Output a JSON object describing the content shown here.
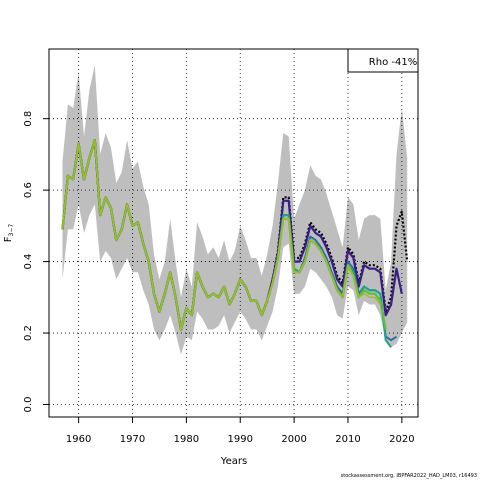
{
  "chart_data": {
    "type": "line",
    "xlabel": "Years",
    "ylabel_main": "F",
    "ylabel_sub": "3−7",
    "xlim": [
      1954.5,
      2023
    ],
    "ylim": [
      -0.035,
      0.995
    ],
    "x_ticks": [
      1960,
      1970,
      1980,
      1990,
      2000,
      2010,
      2020
    ],
    "y_ticks": [
      0.0,
      0.2,
      0.4,
      0.6,
      0.8
    ],
    "y_tick_labels": [
      "0.0",
      "0.2",
      "0.4",
      "0.6",
      "0.8"
    ],
    "grid": true,
    "legend_text": "Rho -41%",
    "legend_position": "top-right",
    "band": {
      "color": "#bebebe",
      "x": [
        1957,
        1958,
        1959,
        1960,
        1961,
        1962,
        1963,
        1964,
        1965,
        1966,
        1967,
        1968,
        1969,
        1970,
        1971,
        1972,
        1973,
        1974,
        1975,
        1976,
        1977,
        1978,
        1979,
        1980,
        1981,
        1982,
        1983,
        1984,
        1985,
        1986,
        1987,
        1988,
        1989,
        1990,
        1991,
        1992,
        1993,
        1994,
        1995,
        1996,
        1997,
        1998,
        1999,
        2000,
        2001,
        2002,
        2003,
        2004,
        2005,
        2006,
        2007,
        2008,
        2009,
        2010,
        2011,
        2012,
        2013,
        2014,
        2015,
        2016,
        2017,
        2018,
        2019,
        2020,
        2021
      ],
      "upper": [
        0.68,
        0.84,
        0.83,
        0.93,
        0.75,
        0.88,
        0.95,
        0.7,
        0.76,
        0.72,
        0.62,
        0.65,
        0.74,
        0.66,
        0.68,
        0.61,
        0.56,
        0.42,
        0.35,
        0.4,
        0.52,
        0.4,
        0.3,
        0.38,
        0.33,
        0.51,
        0.47,
        0.42,
        0.44,
        0.41,
        0.46,
        0.4,
        0.43,
        0.5,
        0.46,
        0.41,
        0.41,
        0.36,
        0.42,
        0.5,
        0.62,
        0.76,
        0.75,
        0.52,
        0.56,
        0.6,
        0.67,
        0.64,
        0.63,
        0.59,
        0.54,
        0.49,
        0.44,
        0.58,
        0.56,
        0.46,
        0.52,
        0.53,
        0.53,
        0.52,
        0.32,
        0.4,
        0.7,
        0.83,
        0.69
      ],
      "lower": [
        0.35,
        0.49,
        0.49,
        0.56,
        0.48,
        0.53,
        0.56,
        0.4,
        0.43,
        0.41,
        0.35,
        0.38,
        0.41,
        0.37,
        0.37,
        0.32,
        0.28,
        0.21,
        0.18,
        0.21,
        0.25,
        0.2,
        0.14,
        0.19,
        0.18,
        0.26,
        0.24,
        0.21,
        0.21,
        0.22,
        0.25,
        0.2,
        0.23,
        0.26,
        0.24,
        0.21,
        0.21,
        0.18,
        0.22,
        0.26,
        0.33,
        0.44,
        0.45,
        0.31,
        0.31,
        0.33,
        0.38,
        0.37,
        0.35,
        0.33,
        0.3,
        0.25,
        0.24,
        0.33,
        0.32,
        0.25,
        0.29,
        0.28,
        0.28,
        0.25,
        0.18,
        0.16,
        0.17,
        0.2,
        0.23
      ]
    },
    "series": [
      {
        "role": "full",
        "color": "#000000",
        "dashed": true,
        "width": 2.2,
        "x": [
          1957,
          1958,
          1959,
          1960,
          1961,
          1962,
          1963,
          1964,
          1965,
          1966,
          1967,
          1968,
          1969,
          1970,
          1971,
          1972,
          1973,
          1974,
          1975,
          1976,
          1977,
          1978,
          1979,
          1980,
          1981,
          1982,
          1983,
          1984,
          1985,
          1986,
          1987,
          1988,
          1989,
          1990,
          1991,
          1992,
          1993,
          1994,
          1995,
          1996,
          1997,
          1998,
          1999,
          2000,
          2001,
          2002,
          2003,
          2004,
          2005,
          2006,
          2007,
          2008,
          2009,
          2010,
          2011,
          2012,
          2013,
          2014,
          2015,
          2016,
          2017,
          2018,
          2019,
          2020,
          2021
        ],
        "y": [
          0.49,
          0.64,
          0.63,
          0.73,
          0.63,
          0.69,
          0.74,
          0.53,
          0.58,
          0.55,
          0.46,
          0.49,
          0.56,
          0.5,
          0.51,
          0.45,
          0.4,
          0.31,
          0.26,
          0.31,
          0.37,
          0.3,
          0.21,
          0.27,
          0.25,
          0.37,
          0.33,
          0.3,
          0.31,
          0.3,
          0.33,
          0.28,
          0.31,
          0.35,
          0.33,
          0.29,
          0.29,
          0.25,
          0.29,
          0.35,
          0.43,
          0.58,
          0.58,
          0.41,
          0.41,
          0.45,
          0.51,
          0.49,
          0.48,
          0.45,
          0.41,
          0.36,
          0.34,
          0.44,
          0.42,
          0.34,
          0.4,
          0.39,
          0.39,
          0.38,
          0.26,
          0.3,
          0.5,
          0.54,
          0.4
        ]
      },
      {
        "role": "peel",
        "color": "#3a1d86",
        "dashed": false,
        "width": 2.2,
        "x": [
          1957,
          1958,
          1959,
          1960,
          1961,
          1962,
          1963,
          1964,
          1965,
          1966,
          1967,
          1968,
          1969,
          1970,
          1971,
          1972,
          1973,
          1974,
          1975,
          1976,
          1977,
          1978,
          1979,
          1980,
          1981,
          1982,
          1983,
          1984,
          1985,
          1986,
          1987,
          1988,
          1989,
          1990,
          1991,
          1992,
          1993,
          1994,
          1995,
          1996,
          1997,
          1998,
          1999,
          2000,
          2001,
          2002,
          2003,
          2004,
          2005,
          2006,
          2007,
          2008,
          2009,
          2010,
          2011,
          2012,
          2013,
          2014,
          2015,
          2016,
          2017,
          2018,
          2019,
          2020
        ],
        "y": [
          0.49,
          0.64,
          0.63,
          0.73,
          0.63,
          0.69,
          0.74,
          0.53,
          0.58,
          0.55,
          0.46,
          0.49,
          0.56,
          0.5,
          0.51,
          0.45,
          0.4,
          0.31,
          0.26,
          0.31,
          0.37,
          0.3,
          0.21,
          0.27,
          0.25,
          0.37,
          0.33,
          0.3,
          0.31,
          0.3,
          0.33,
          0.28,
          0.31,
          0.35,
          0.33,
          0.29,
          0.29,
          0.25,
          0.29,
          0.35,
          0.42,
          0.57,
          0.57,
          0.4,
          0.4,
          0.44,
          0.5,
          0.48,
          0.47,
          0.44,
          0.4,
          0.35,
          0.33,
          0.43,
          0.41,
          0.33,
          0.39,
          0.38,
          0.38,
          0.37,
          0.25,
          0.28,
          0.38,
          0.31
        ]
      },
      {
        "role": "peel",
        "color": "#2c6ea6",
        "dashed": false,
        "width": 2,
        "x": [
          1996,
          1997,
          1998,
          1999,
          2000,
          2001,
          2002,
          2003,
          2004,
          2005,
          2006,
          2007,
          2008,
          2009,
          2010,
          2011,
          2012,
          2013,
          2014,
          2015,
          2016,
          2017,
          2018,
          2019
        ],
        "y": [
          0.34,
          0.41,
          0.53,
          0.53,
          0.38,
          0.37,
          0.41,
          0.47,
          0.46,
          0.44,
          0.41,
          0.37,
          0.33,
          0.31,
          0.4,
          0.38,
          0.31,
          0.33,
          0.32,
          0.32,
          0.31,
          0.19,
          0.18,
          0.19
        ]
      },
      {
        "role": "peel",
        "color": "#20a386",
        "dashed": false,
        "width": 2,
        "x": [
          1996,
          1997,
          1998,
          1999,
          2000,
          2001,
          2002,
          2003,
          2004,
          2005,
          2006,
          2007,
          2008,
          2009,
          2010,
          2011,
          2012,
          2013,
          2014,
          2015,
          2016,
          2017,
          2018
        ],
        "y": [
          0.34,
          0.41,
          0.53,
          0.53,
          0.38,
          0.37,
          0.4,
          0.46,
          0.45,
          0.43,
          0.4,
          0.36,
          0.32,
          0.3,
          0.39,
          0.37,
          0.3,
          0.33,
          0.32,
          0.32,
          0.31,
          0.18,
          0.16
        ]
      },
      {
        "role": "peel",
        "color": "#5bbf3e",
        "dashed": false,
        "width": 2.2,
        "x": [
          1957,
          1958,
          1959,
          1960,
          1961,
          1962,
          1963,
          1964,
          1965,
          1966,
          1967,
          1968,
          1969,
          1970,
          1971,
          1972,
          1973,
          1974,
          1975,
          1976,
          1977,
          1978,
          1979,
          1980,
          1981,
          1982,
          1983,
          1984,
          1985,
          1986,
          1987,
          1988,
          1989,
          1990,
          1991,
          1992,
          1993,
          1994,
          1995,
          1996,
          1997,
          1998,
          1999,
          2000,
          2001,
          2002,
          2003,
          2004,
          2005,
          2006,
          2007,
          2008,
          2009,
          2010,
          2011,
          2012,
          2013,
          2014,
          2015,
          2016,
          2017
        ],
        "y": [
          0.49,
          0.64,
          0.63,
          0.73,
          0.63,
          0.69,
          0.74,
          0.53,
          0.58,
          0.55,
          0.46,
          0.49,
          0.56,
          0.5,
          0.51,
          0.45,
          0.4,
          0.31,
          0.26,
          0.31,
          0.37,
          0.3,
          0.21,
          0.27,
          0.25,
          0.37,
          0.33,
          0.3,
          0.31,
          0.3,
          0.33,
          0.28,
          0.31,
          0.35,
          0.33,
          0.29,
          0.29,
          0.25,
          0.29,
          0.34,
          0.41,
          0.52,
          0.52,
          0.37,
          0.37,
          0.4,
          0.46,
          0.45,
          0.43,
          0.4,
          0.36,
          0.32,
          0.3,
          0.39,
          0.36,
          0.3,
          0.32,
          0.31,
          0.31,
          0.29,
          0.21
        ]
      },
      {
        "role": "peel",
        "color": "#a7ba21",
        "dashed": false,
        "width": 1.4,
        "x": [
          1957,
          1958,
          1959,
          1960,
          1961,
          1962,
          1963,
          1964,
          1965,
          1966,
          1967,
          1968,
          1969,
          1970,
          1971,
          1972,
          1973,
          1974,
          1975,
          1976,
          1977,
          1978,
          1979,
          1980,
          1981,
          1982,
          1983,
          1984,
          1985,
          1986,
          1987,
          1988,
          1989,
          1990,
          1991,
          1992,
          1993,
          1994,
          1995,
          1996,
          1997,
          1998,
          1999,
          2000,
          2001,
          2002,
          2003,
          2004,
          2005,
          2006,
          2007,
          2008,
          2009,
          2010,
          2011,
          2012,
          2013,
          2014,
          2015,
          2016
        ],
        "y": [
          0.49,
          0.64,
          0.63,
          0.73,
          0.63,
          0.69,
          0.74,
          0.53,
          0.58,
          0.55,
          0.46,
          0.49,
          0.56,
          0.5,
          0.51,
          0.45,
          0.4,
          0.31,
          0.26,
          0.31,
          0.37,
          0.3,
          0.21,
          0.27,
          0.25,
          0.37,
          0.33,
          0.3,
          0.31,
          0.3,
          0.33,
          0.28,
          0.31,
          0.35,
          0.33,
          0.29,
          0.29,
          0.25,
          0.29,
          0.34,
          0.41,
          0.52,
          0.52,
          0.37,
          0.37,
          0.4,
          0.46,
          0.45,
          0.43,
          0.4,
          0.36,
          0.32,
          0.3,
          0.39,
          0.36,
          0.3,
          0.31,
          0.3,
          0.3,
          0.28
        ]
      }
    ]
  },
  "footer": "stockassessment.org, IBPFAR2022_HAD_LM03, r16493"
}
